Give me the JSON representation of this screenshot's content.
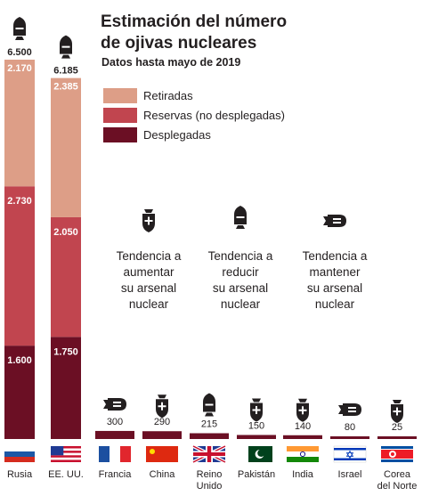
{
  "title_lines": [
    "Estimación del número",
    "de ojivas nucleares"
  ],
  "subtitle": "Datos hasta mayo de 2019",
  "colors": {
    "retired": "#dd9e87",
    "reserve": "#c1454f",
    "deployed": "#6b0f24"
  },
  "legend": [
    {
      "key": "retired",
      "label": "Retiradas"
    },
    {
      "key": "reserve",
      "label": "Reservas (no desplegadas)"
    },
    {
      "key": "deployed",
      "label": "Desplegadas"
    }
  ],
  "trends": [
    {
      "icon": "bomb-plus-icon",
      "lines": [
        "Tendencia a",
        "aumentar",
        "su arsenal",
        "nuclear"
      ]
    },
    {
      "icon": "bomb-minus-icon",
      "lines": [
        "Tendencia a",
        "reducir",
        "su arsenal",
        "nuclear"
      ]
    },
    {
      "icon": "bomb-equal-icon",
      "lines": [
        "Tendencia a",
        "mantener",
        "su arsenal",
        "nuclear"
      ]
    }
  ],
  "chart_data": {
    "type": "bar",
    "title": "Estimación del número de ojivas nucleares",
    "subtitle": "Datos hasta mayo de 2019",
    "stacked": true,
    "countries": [
      {
        "name": [
          "Rusia"
        ],
        "total": "6.500",
        "total_value": 6500,
        "trend": "minus",
        "flag": "russia",
        "segments": {
          "deployed": 1600,
          "reserve": 2730,
          "retired": 2170
        },
        "labels": {
          "deployed": "1.600",
          "reserve": "2.730",
          "retired": "2.170"
        }
      },
      {
        "name": [
          "EE. UU."
        ],
        "total": "6.185",
        "total_value": 6185,
        "trend": "minus",
        "flag": "usa",
        "segments": {
          "deployed": 1750,
          "reserve": 2050,
          "retired": 2385
        },
        "labels": {
          "deployed": "1.750",
          "reserve": "2.050",
          "retired": "2.385"
        }
      },
      {
        "name": [
          "Francia"
        ],
        "total": "300",
        "total_value": 300,
        "trend": "equal",
        "flag": "france"
      },
      {
        "name": [
          "China"
        ],
        "total": "290",
        "total_value": 290,
        "trend": "plus",
        "flag": "china"
      },
      {
        "name": [
          "Reino",
          "Unido"
        ],
        "total": "215",
        "total_value": 215,
        "trend": "minus",
        "flag": "uk"
      },
      {
        "name": [
          "Pakistán"
        ],
        "total": "150",
        "total_value": 150,
        "trend": "plus",
        "flag": "pakistan"
      },
      {
        "name": [
          "India"
        ],
        "total": "140",
        "total_value": 140,
        "trend": "plus",
        "flag": "india"
      },
      {
        "name": [
          "Israel"
        ],
        "total": "80",
        "total_value": 80,
        "trend": "equal",
        "flag": "israel"
      },
      {
        "name": [
          "Corea",
          "del Norte"
        ],
        "total": "25",
        "total_value": 25,
        "trend": "plus",
        "flag": "north-korea"
      }
    ]
  }
}
